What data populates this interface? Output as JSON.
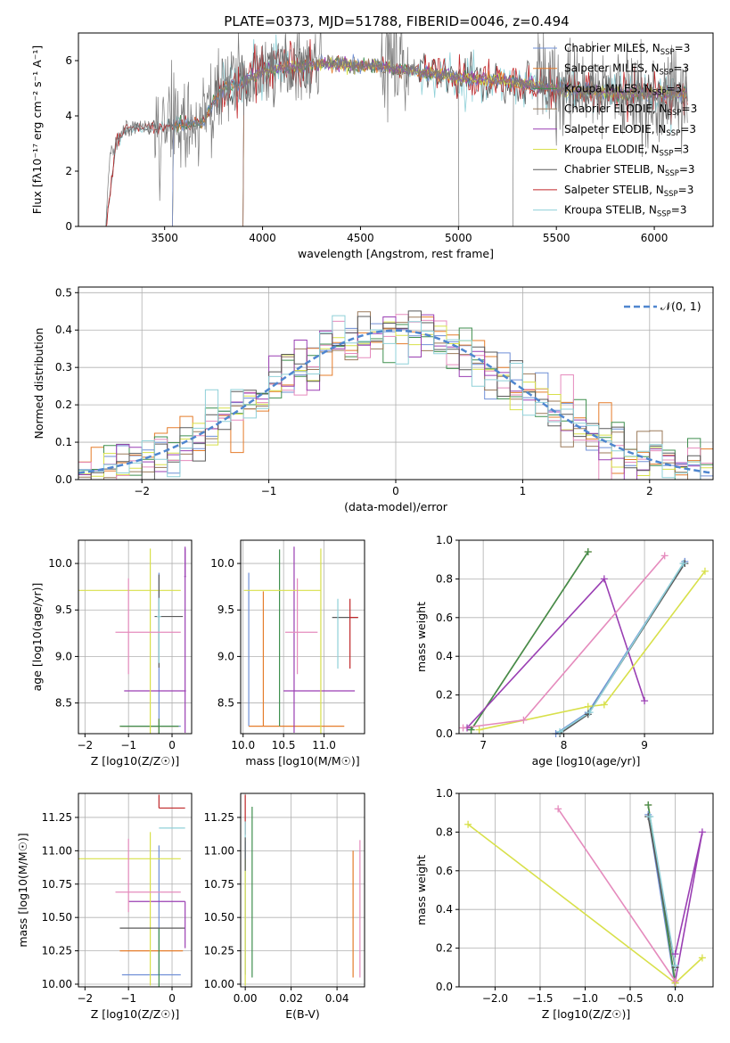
{
  "title": "PLATE=0373, MJD=51788, FIBERID=0046, z=0.494",
  "colors": {
    "Chabrier MILES": "#6f8fd6",
    "Salpeter MILES": "#e57c2a",
    "Kroupa MILES": "#3f8f4f",
    "Chabrier ELODIE": "#9b7a5a",
    "Salpeter ELODIE": "#9a3fb3",
    "Kroupa ELODIE": "#d8e04a",
    "Chabrier STELIB": "#5a5a5a",
    "Salpeter STELIB": "#c0282a",
    "Kroupa STELIB": "#8fd0d8",
    "pink": "#e58bbd",
    "normal": "#4f86cf"
  },
  "chart_data": [
    {
      "id": "spectrum",
      "type": "line",
      "title": "PLATE=0373, MJD=51788, FIBERID=0046, z=0.494",
      "xlabel": "wavelength [Angstrom, rest frame]",
      "ylabel": "Flux [f_λ 10^-17 erg cm^-2 s^-1 A^-1]",
      "xlim": [
        3060,
        6300
      ],
      "ylim": [
        0,
        7
      ],
      "xticks": [
        3500,
        4000,
        4500,
        5000,
        5500,
        6000
      ],
      "yticks": [
        0,
        2,
        4,
        6
      ],
      "legend_position": "top-right",
      "grid": false,
      "legend": [
        "Chabrier MILES, N_SSP=3",
        "Salpeter MILES, N_SSP=3",
        "Kroupa MILES, N_SSP=3",
        "Chabrier ELODIE, N_SSP=3",
        "Salpeter ELODIE, N_SSP=3",
        "Kroupa ELODIE, N_SSP=3",
        "Chabrier STELIB, N_SSP=3",
        "Salpeter STELIB, N_SSP=3",
        "Kroupa STELIB, N_SSP=3"
      ],
      "model_start_wavelength": {
        "Chabrier MILES": 3540,
        "Salpeter MILES": 3540,
        "Kroupa MILES": 3540,
        "Chabrier ELODIE": 3900,
        "Salpeter ELODIE": 3900,
        "Kroupa ELODIE": 3900,
        "Chabrier STELIB": 3200,
        "Salpeter STELIB": 3200,
        "Kroupa STELIB": 3200
      },
      "continuum": {
        "x": [
          3200,
          3220,
          3300,
          3400,
          3500,
          3600,
          3700,
          3750,
          3800,
          3900,
          4000,
          4100,
          4200,
          4300,
          4400,
          4500,
          4600,
          4700,
          4800,
          4900,
          5000,
          5100,
          5200,
          5300,
          5400,
          5500,
          5600,
          5700,
          5800,
          5900,
          6000,
          6100,
          6170
        ],
        "y": [
          0,
          2.6,
          3.5,
          3.6,
          3.6,
          3.7,
          3.8,
          4.5,
          5.0,
          5.2,
          5.6,
          5.7,
          5.8,
          5.9,
          5.9,
          5.8,
          5.8,
          5.7,
          5.6,
          5.5,
          5.4,
          5.3,
          5.3,
          5.2,
          5.1,
          5.0,
          4.9,
          4.9,
          4.8,
          4.8,
          4.8,
          4.8,
          4.8
        ]
      }
    },
    {
      "id": "residuals",
      "type": "line",
      "xlabel": "(data-model)/error",
      "ylabel": "Normed distribution",
      "xlim": [
        -2.5,
        2.5
      ],
      "ylim": [
        0,
        0.515
      ],
      "xticks": [
        -2,
        -1,
        0,
        1,
        2
      ],
      "yticks": [
        0.0,
        0.1,
        0.2,
        0.3,
        0.4,
        0.5
      ],
      "grid": true,
      "legend": [
        "𝒩(0, 1)"
      ],
      "legend_position": "top-right",
      "bin_width": 0.1
    },
    {
      "id": "age-Z",
      "type": "scatter",
      "xlabel": "Z [log10(Z/Z☉)]",
      "ylabel": "age [log10(age/yr)]",
      "xlim": [
        -2.15,
        0.45
      ],
      "ylim": [
        8.17,
        10.25
      ],
      "xticks": [
        -2,
        -1,
        0
      ],
      "yticks": [
        8.5,
        9.0,
        9.5,
        10.0
      ],
      "grid": true,
      "errorbars": [
        {
          "model": "Chabrier MILES",
          "x": -0.3,
          "y": 8.25,
          "xerr": [
            0.85,
            0.5
          ],
          "yerr": [
            0.08,
            1.65
          ]
        },
        {
          "model": "Salpeter MILES",
          "x": -0.3,
          "y": 8.25,
          "xerr": [
            0.9,
            0.45
          ],
          "yerr": [
            0.08,
            0.08
          ]
        },
        {
          "model": "Kroupa MILES",
          "x": -0.3,
          "y": 8.25,
          "xerr": [
            0.9,
            0.45
          ],
          "yerr": [
            0.08,
            0.08
          ]
        },
        {
          "model": "Salpeter ELODIE",
          "x": 0.3,
          "y": 8.63,
          "xerr": [
            1.4,
            0.02
          ],
          "yerr": [
            0.45,
            1.55
          ]
        },
        {
          "model": "Kroupa ELODIE",
          "x": -0.5,
          "y": 9.71,
          "xerr": [
            1.7,
            0.7
          ],
          "yerr": [
            1.55,
            0.45
          ]
        },
        {
          "model": "Chabrier STELIB",
          "x": -0.3,
          "y": 9.43,
          "xerr": [
            0.1,
            0.55
          ],
          "yerr": [
            0.55,
            0.45
          ]
        },
        {
          "model": "Kroupa STELIB",
          "x": -0.3,
          "y": 9.43,
          "xerr": [
            0.05,
            0.05
          ],
          "yerr": [
            0.5,
            0.2
          ]
        },
        {
          "model": "pink",
          "x": -1.0,
          "y": 9.26,
          "xerr": [
            0.3,
            1.2
          ],
          "yerr": [
            0.45,
            0.58
          ]
        },
        {
          "model": "Salpeter ELODIE",
          "x": 0.3,
          "y": 9.86,
          "xerr": [
            0.02,
            0.02
          ],
          "yerr": [
            0.0,
            0.3
          ]
        }
      ]
    },
    {
      "id": "age-mass",
      "type": "scatter",
      "xlabel": "mass [log10(M/M☉)]",
      "ylabel": "",
      "xlim": [
        9.97,
        11.5
      ],
      "ylim": [
        8.17,
        10.25
      ],
      "xticks": [
        10.0,
        10.5,
        11.0
      ],
      "yticks": [
        8.5,
        9.0,
        9.5,
        10.0
      ],
      "grid": true,
      "errorbars": [
        {
          "model": "Chabrier MILES",
          "x": 10.07,
          "y": 9.9,
          "xerr": [
            0.0,
            0.0
          ],
          "yerr": [
            1.65,
            0.0
          ]
        },
        {
          "model": "Salpeter MILES",
          "x": 10.25,
          "y": 8.25,
          "xerr": [
            0.18,
            1.0
          ],
          "yerr": [
            0.0,
            1.45
          ]
        },
        {
          "model": "Kroupa MILES",
          "x": 10.45,
          "y": 10.15,
          "xerr": [
            0.0,
            0.0
          ],
          "yerr": [
            1.9,
            0.0
          ]
        },
        {
          "model": "Salpeter ELODIE",
          "x": 10.63,
          "y": 8.63,
          "xerr": [
            0.13,
            0.75
          ],
          "yerr": [
            0.45,
            1.55
          ]
        },
        {
          "model": "Kroupa ELODIE",
          "x": 10.96,
          "y": 9.71,
          "xerr": [
            0.95,
            0.0
          ],
          "yerr": [
            1.55,
            0.45
          ]
        },
        {
          "model": "Chabrier STELIB",
          "x": 11.22,
          "y": 9.42,
          "xerr": [
            0.12,
            0.2
          ],
          "yerr": [
            0.0,
            0.0
          ]
        },
        {
          "model": "Salpeter STELIB",
          "x": 11.32,
          "y": 9.42,
          "xerr": [
            0.0,
            0.1
          ],
          "yerr": [
            0.55,
            0.2
          ]
        },
        {
          "model": "Kroupa STELIB",
          "x": 11.17,
          "y": 9.42,
          "xerr": [
            0.0,
            0.0
          ],
          "yerr": [
            0.55,
            0.2
          ]
        },
        {
          "model": "pink",
          "x": 10.67,
          "y": 9.26,
          "xerr": [
            0.15,
            0.25
          ],
          "yerr": [
            0.45,
            0.58
          ]
        }
      ]
    },
    {
      "id": "weight-age",
      "type": "line",
      "xlabel": "age [log10(age/yr)]",
      "ylabel": "mass weight",
      "xlim": [
        6.7,
        9.85
      ],
      "ylim": [
        0.0,
        1.0
      ],
      "xticks": [
        7,
        8,
        9
      ],
      "yticks": [
        0.0,
        0.2,
        0.4,
        0.6,
        0.8,
        1.0
      ],
      "grid": true,
      "series": [
        {
          "model": "Chabrier MILES",
          "x": [
            7.9,
            8.3,
            9.5
          ],
          "y": [
            0.0,
            0.11,
            0.89
          ]
        },
        {
          "model": "Salpeter MILES",
          "x": [
            6.85,
            8.3
          ],
          "y": [
            0.02,
            0.94
          ]
        },
        {
          "model": "Kroupa MILES",
          "x": [
            6.85,
            8.3
          ],
          "y": [
            0.02,
            0.94
          ]
        },
        {
          "model": "Salpeter ELODIE",
          "x": [
            6.8,
            8.5,
            9.0
          ],
          "y": [
            0.03,
            0.8,
            0.17
          ]
        },
        {
          "model": "Kroupa ELODIE",
          "x": [
            6.95,
            8.3,
            8.5,
            9.75
          ],
          "y": [
            0.02,
            0.14,
            0.15,
            0.84
          ]
        },
        {
          "model": "Chabrier STELIB",
          "x": [
            7.95,
            8.3,
            9.5
          ],
          "y": [
            0.0,
            0.1,
            0.88
          ]
        },
        {
          "model": "Kroupa STELIB",
          "x": [
            7.95,
            8.32,
            9.48
          ],
          "y": [
            0.01,
            0.11,
            0.88
          ]
        },
        {
          "model": "pink",
          "x": [
            6.75,
            7.5,
            9.25
          ],
          "y": [
            0.03,
            0.07,
            0.92
          ]
        }
      ]
    },
    {
      "id": "mass-Z",
      "type": "scatter",
      "xlabel": "Z [log10(Z/Z☉)]",
      "ylabel": "mass [log10(M/M☉)]",
      "xlim": [
        -2.15,
        0.45
      ],
      "ylim": [
        9.98,
        11.43
      ],
      "xticks": [
        -2,
        -1,
        0
      ],
      "yticks": [
        10.0,
        10.25,
        10.5,
        10.75,
        11.0,
        11.25
      ],
      "grid": true,
      "errorbars": [
        {
          "model": "Chabrier MILES",
          "x": -0.3,
          "y": 10.07,
          "xerr": [
            0.85,
            0.5
          ],
          "yerr": [
            0.0,
            0.97
          ]
        },
        {
          "model": "Salpeter MILES",
          "x": -0.3,
          "y": 10.25,
          "xerr": [
            0.9,
            0.55
          ],
          "yerr": [
            0.0,
            0.0
          ]
        },
        {
          "model": "Kroupa MILES",
          "x": -0.3,
          "y": 10.42,
          "xerr": [
            0.0,
            0.0
          ],
          "yerr": [
            0.45,
            0.0
          ]
        },
        {
          "model": "Salpeter ELODIE",
          "x": 0.3,
          "y": 10.62,
          "xerr": [
            1.3,
            0.0
          ],
          "yerr": [
            0.0,
            0.0
          ]
        },
        {
          "model": "Kroupa ELODIE",
          "x": -0.5,
          "y": 10.94,
          "xerr": [
            1.7,
            0.7
          ],
          "yerr": [
            0.95,
            0.2
          ]
        },
        {
          "model": "Chabrier STELIB",
          "x": -0.3,
          "y": 10.42,
          "xerr": [
            0.9,
            0.6
          ],
          "yerr": [
            0.0,
            0.0
          ]
        },
        {
          "model": "Salpeter STELIB",
          "x": -0.3,
          "y": 11.32,
          "xerr": [
            0.0,
            0.6
          ],
          "yerr": [
            0.0,
            0.1
          ]
        },
        {
          "model": "Kroupa STELIB",
          "x": -0.1,
          "y": 11.17,
          "xerr": [
            0.2,
            0.4
          ],
          "yerr": [
            0.0,
            0.0
          ]
        },
        {
          "model": "pink",
          "x": -1.0,
          "y": 10.69,
          "xerr": [
            0.3,
            1.2
          ],
          "yerr": [
            0.15,
            0.4
          ]
        },
        {
          "model": "Salpeter ELODIE",
          "x": 0.3,
          "y": 10.62,
          "xerr": [
            0.0,
            0.0
          ],
          "yerr": [
            0.35,
            0.0
          ]
        }
      ]
    },
    {
      "id": "mass-ebv",
      "type": "scatter",
      "xlabel": "E(B-V)",
      "ylabel": "",
      "xlim": [
        -0.002,
        0.052
      ],
      "ylim": [
        9.98,
        11.43
      ],
      "xticks": [
        0.0,
        0.02,
        0.04
      ],
      "yticks": [
        10.0,
        10.25,
        10.5,
        10.75,
        11.0,
        11.25
      ],
      "grid": true,
      "errorbars": [
        {
          "model": "Chabrier MILES",
          "x": 0.0,
          "y": 10.07,
          "xerr": [
            0.0,
            0.0
          ],
          "yerr": [
            0.0,
            1.0
          ]
        },
        {
          "model": "Salpeter MILES",
          "x": 0.047,
          "y": 10.05,
          "xerr": [
            0.0,
            0.0
          ],
          "yerr": [
            0.0,
            0.95
          ]
        },
        {
          "model": "Kroupa MILES",
          "x": 0.003,
          "y": 10.5,
          "xerr": [
            0.0,
            0.0
          ],
          "yerr": [
            0.45,
            0.83
          ]
        },
        {
          "model": "Salpeter STELIB",
          "x": 0.0,
          "y": 11.32,
          "xerr": [
            0.0,
            0.0
          ],
          "yerr": [
            0.2,
            0.1
          ]
        },
        {
          "model": "Kroupa STELIB",
          "x": 0.0,
          "y": 11.17,
          "xerr": [
            0.0,
            0.0
          ],
          "yerr": [
            0.3,
            0.05
          ]
        },
        {
          "model": "Kroupa ELODIE",
          "x": 0.0,
          "y": 10.94,
          "xerr": [
            0.0,
            0.0
          ],
          "yerr": [
            0.95,
            0.0
          ]
        },
        {
          "model": "pink",
          "x": 0.05,
          "y": 10.5,
          "xerr": [
            0.0,
            0.0
          ],
          "yerr": [
            0.45,
            0.58
          ]
        },
        {
          "model": "Chabrier STELIB",
          "x": 0.0,
          "y": 11.1,
          "xerr": [
            0.0,
            0.0
          ],
          "yerr": [
            0.25,
            0.0
          ]
        }
      ]
    },
    {
      "id": "weight-Z",
      "type": "line",
      "xlabel": "Z [log10(Z/Z☉)]",
      "ylabel": "mass weight",
      "xlim": [
        -2.4,
        0.42
      ],
      "ylim": [
        0.0,
        1.0
      ],
      "xticks": [
        -2.0,
        -1.5,
        -1.0,
        -0.5,
        0.0
      ],
      "yticks": [
        0.0,
        0.2,
        0.4,
        0.6,
        0.8,
        1.0
      ],
      "grid": true,
      "series": [
        {
          "model": "Chabrier MILES",
          "x": [
            -0.3,
            0.0
          ],
          "y": [
            0.89,
            0.0
          ]
        },
        {
          "model": "Salpeter MILES",
          "x": [
            -0.3,
            0.0
          ],
          "y": [
            0.94,
            0.02
          ]
        },
        {
          "model": "Kroupa MILES",
          "x": [
            -0.3,
            0.0
          ],
          "y": [
            0.94,
            0.02
          ]
        },
        {
          "model": "Salpeter ELODIE",
          "x": [
            0.0,
            0.3,
            0.0
          ],
          "y": [
            0.17,
            0.8,
            0.03
          ]
        },
        {
          "model": "Kroupa ELODIE",
          "x": [
            -2.3,
            0.0,
            0.3
          ],
          "y": [
            0.84,
            0.02,
            0.15
          ]
        },
        {
          "model": "Chabrier STELIB",
          "x": [
            -0.3,
            0.0
          ],
          "y": [
            0.88,
            0.1
          ]
        },
        {
          "model": "Kroupa STELIB",
          "x": [
            -0.28,
            0.0
          ],
          "y": [
            0.88,
            0.11
          ]
        },
        {
          "model": "pink",
          "x": [
            -1.3,
            0.0
          ],
          "y": [
            0.92,
            0.03
          ]
        }
      ]
    }
  ]
}
